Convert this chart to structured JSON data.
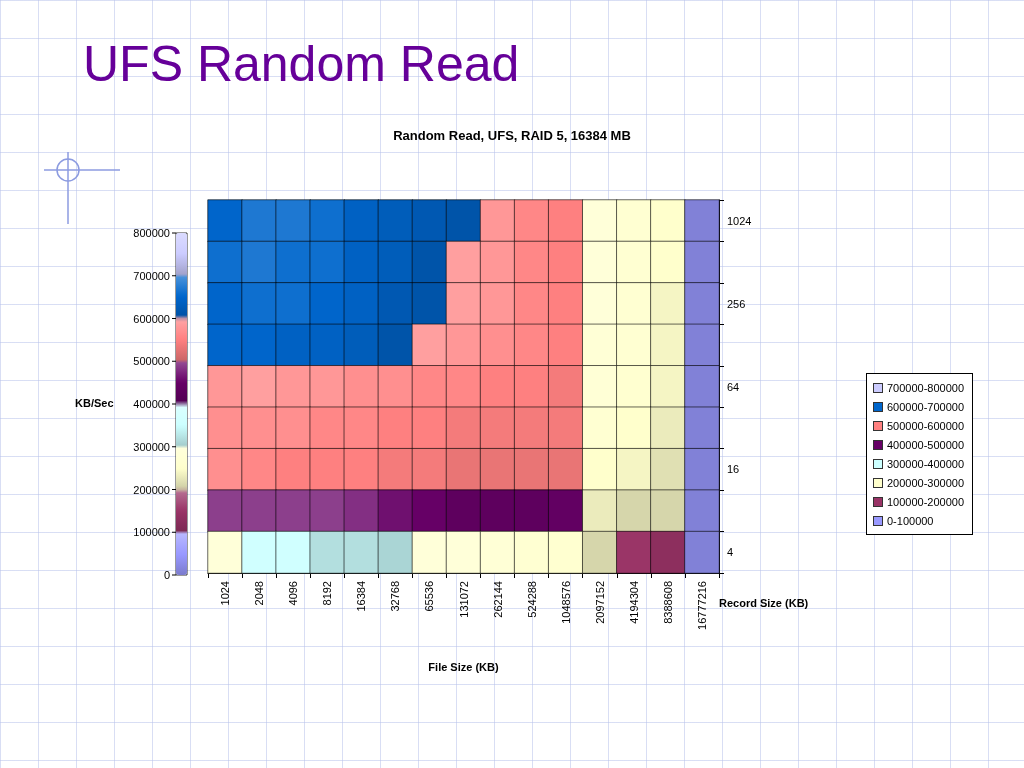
{
  "chart_data": {
    "type": "heatmap",
    "title": "UFS Random Read",
    "subtitle": "Random Read, UFS, RAID 5, 16384 MB",
    "xlabel": "File Size (KB)",
    "ylabel": "Record Size (KB)",
    "clabel": "KB/Sec",
    "categories": [
      "1024",
      "2048",
      "4096",
      "8192",
      "16384",
      "32768",
      "65536",
      "131072",
      "262144",
      "524288",
      "1048576",
      "2097152",
      "4194304",
      "8388608",
      "16777216"
    ],
    "y_categories": [
      "1024",
      null,
      "256",
      null,
      "64",
      null,
      "16",
      null,
      "4"
    ],
    "cells": [
      [
        650000,
        670000,
        670000,
        660000,
        640000,
        630000,
        620000,
        610000,
        580000,
        560000,
        550000,
        290000,
        270000,
        250000,
        10000
      ],
      [
        660000,
        670000,
        660000,
        660000,
        640000,
        630000,
        610000,
        590000,
        580000,
        560000,
        550000,
        290000,
        270000,
        250000,
        10000
      ],
      [
        650000,
        660000,
        660000,
        650000,
        640000,
        620000,
        610000,
        590000,
        580000,
        560000,
        550000,
        290000,
        270000,
        240000,
        10000
      ],
      [
        650000,
        650000,
        640000,
        640000,
        630000,
        610000,
        590000,
        580000,
        570000,
        560000,
        550000,
        280000,
        270000,
        240000,
        10000
      ],
      [
        580000,
        590000,
        580000,
        580000,
        570000,
        570000,
        560000,
        560000,
        550000,
        550000,
        540000,
        280000,
        260000,
        240000,
        10000
      ],
      [
        570000,
        570000,
        570000,
        560000,
        560000,
        550000,
        550000,
        540000,
        540000,
        540000,
        540000,
        270000,
        250000,
        230000,
        10000
      ],
      [
        570000,
        560000,
        550000,
        550000,
        550000,
        540000,
        540000,
        530000,
        530000,
        530000,
        530000,
        250000,
        240000,
        220000,
        10000
      ],
      [
        490000,
        490000,
        490000,
        490000,
        480000,
        460000,
        450000,
        430000,
        430000,
        430000,
        440000,
        230000,
        210000,
        210000,
        10000
      ],
      [
        290000,
        360000,
        360000,
        320000,
        320000,
        310000,
        290000,
        290000,
        280000,
        270000,
        260000,
        210000,
        150000,
        130000,
        10000
      ]
    ],
    "clim": [
      0,
      800000
    ],
    "cticks": [
      0,
      100000,
      200000,
      300000,
      400000,
      500000,
      600000,
      700000,
      800000
    ],
    "colors": [
      "#9999ff",
      "#993366",
      "#ffffcc",
      "#ccffff",
      "#660066",
      "#ff8080",
      "#0066cc",
      "#ccccff"
    ],
    "annotations": [
      "700000-800000",
      "600000-700000",
      "500000-600000",
      "400000-500000",
      "300000-400000",
      "200000-300000",
      "100000-200000",
      "0-100000"
    ]
  }
}
